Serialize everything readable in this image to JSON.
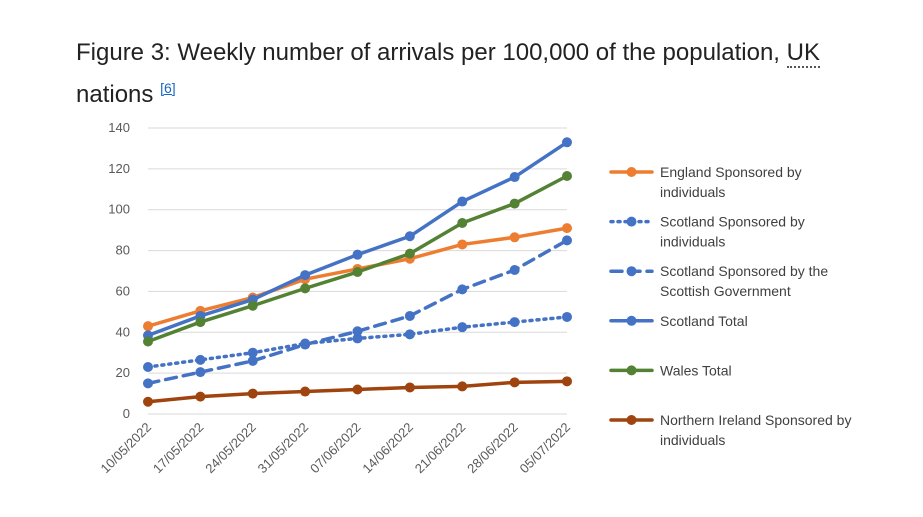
{
  "page": {
    "title_main": "Figure 3: Weekly number of arrivals per 100,000 of the population, ",
    "title_uk": "UK",
    "title_tail": "nations ",
    "footnote_ref": "[6]"
  },
  "chart_data": {
    "type": "line",
    "title": "",
    "xlabel": "",
    "ylabel": "",
    "ylim": [
      0,
      140
    ],
    "yticks": [
      0,
      20,
      40,
      60,
      80,
      100,
      120,
      140
    ],
    "grid": "horizontal",
    "legend_position": "right",
    "categories": [
      "10/05/2022",
      "17/05/2022",
      "24/05/2022",
      "31/05/2022",
      "07/06/2022",
      "14/06/2022",
      "21/06/2022",
      "28/06/2022",
      "05/07/2022"
    ],
    "series": [
      {
        "name_lines": [
          "England Sponsored by",
          "individuals"
        ],
        "color": "#ED7D31",
        "dash": "solid",
        "values": [
          43,
          50.5,
          57,
          66,
          71,
          76,
          83,
          86.5,
          91
        ]
      },
      {
        "name_lines": [
          "Scotland Sponsored by",
          "individuals"
        ],
        "color": "#4472C4",
        "dash": "dotted",
        "values": [
          23,
          26.5,
          30,
          34.5,
          37,
          39,
          42.5,
          45,
          47.5
        ]
      },
      {
        "name_lines": [
          "Scotland Sponsored by the",
          "Scottish Government"
        ],
        "color": "#4472C4",
        "dash": "dashed",
        "values": [
          15,
          20.5,
          26,
          34,
          40.5,
          48,
          61,
          70.5,
          85
        ]
      },
      {
        "name_lines": [
          "Scotland Total"
        ],
        "color": "#4472C4",
        "dash": "solid",
        "values": [
          38.5,
          48,
          56,
          68,
          78,
          87,
          104,
          116,
          133
        ]
      },
      {
        "name_lines": [
          "Wales Total"
        ],
        "color": "#548235",
        "dash": "solid",
        "values": [
          35.5,
          45,
          53,
          61.5,
          69.5,
          78.5,
          93.5,
          103,
          116.5
        ]
      },
      {
        "name_lines": [
          "Northern Ireland Sponsored by",
          "individuals"
        ],
        "color": "#A0440F",
        "dash": "solid",
        "values": [
          6,
          8.5,
          10,
          11,
          12,
          13,
          13.5,
          15.5,
          16
        ]
      }
    ]
  }
}
